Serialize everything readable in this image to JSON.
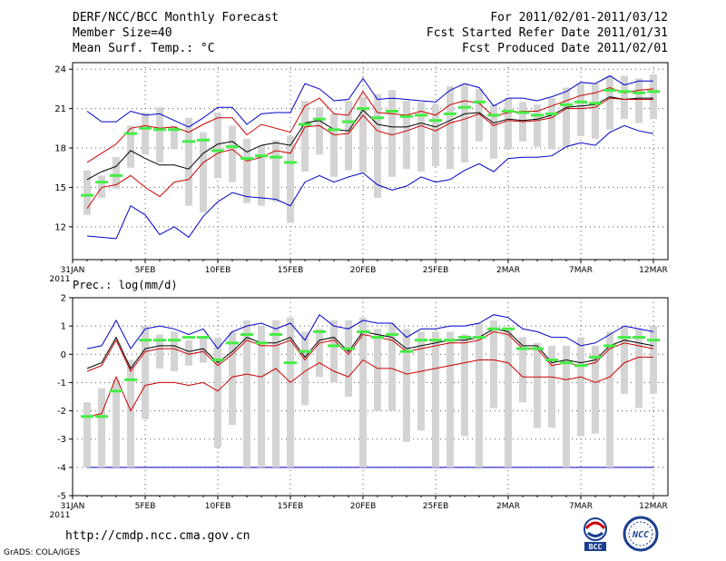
{
  "header": {
    "title": "DERF/NCC/BCC Monthly Forecast",
    "member_size": "Member Size=40",
    "variable": "Mean Surf. Temp.: °C",
    "forecast_period": "For 2011/02/01-2011/03/12",
    "refer_date": "Fcst Started Refer Date 2011/01/31",
    "produced_date": "Fcst Produced Date 2011/02/01"
  },
  "footer": {
    "url": "http://cmdp.ncc.cma.gov.cn",
    "credit": "GrADS: COLA/IGES",
    "logo1_text": "BCC",
    "logo2_text": "NCC"
  },
  "colors": {
    "ensemble_range": "#d4d4d4",
    "member_marker": "#44ee44",
    "spread_outer": "#0000cc",
    "spread_inner": "#cc0000",
    "ensemble_mean": "#000000",
    "grid": "#555555"
  },
  "chart_data": [
    {
      "type": "line",
      "title": "",
      "panel_label": "",
      "xlabel": "",
      "ylabel": "",
      "year_label": "2011",
      "x_tick_labels": [
        "31JAN",
        "5FEB",
        "10FEB",
        "15FEB",
        "20FEB",
        "25FEB",
        "2MAR",
        "7MAR",
        "12MAR"
      ],
      "x_tick_days": [
        0,
        5,
        10,
        15,
        20,
        25,
        30,
        35,
        40
      ],
      "ylim": [
        9.5,
        24.5
      ],
      "yticks": [
        12,
        15,
        18,
        21,
        24
      ],
      "grid": true,
      "x": [
        1,
        2,
        3,
        4,
        5,
        6,
        7,
        8,
        9,
        10,
        11,
        12,
        13,
        14,
        15,
        16,
        17,
        18,
        19,
        20,
        21,
        22,
        23,
        24,
        25,
        26,
        27,
        28,
        29,
        30,
        31,
        32,
        33,
        34,
        35,
        36,
        37,
        38,
        39,
        40
      ],
      "range_bars": {
        "low": [
          12.9,
          14.2,
          14.9,
          16.5,
          17.5,
          16.9,
          17.9,
          13.6,
          13.1,
          15.7,
          15.4,
          13.8,
          13.6,
          13.9,
          12.3,
          16.2,
          17.5,
          15.8,
          16.3,
          16.1,
          14.2,
          15.8,
          16.4,
          16.2,
          16.6,
          16.4,
          16.9,
          18.5,
          17.2,
          17.9,
          18.5,
          18.1,
          17.9,
          18.1,
          18.9,
          18.7,
          19.4,
          20.2,
          19.9,
          20.2
        ],
        "high": [
          16.3,
          15.9,
          17.3,
          19.7,
          20.7,
          21.1,
          19.7,
          20.3,
          19.2,
          20.7,
          19.7,
          18.7,
          18.2,
          18.6,
          18.9,
          21.6,
          21.1,
          20.6,
          21.6,
          21.9,
          22.1,
          22.4,
          21.6,
          21.5,
          21.3,
          22.7,
          22.9,
          22.5,
          21.3,
          21.8,
          21.5,
          21.3,
          21.8,
          22.6,
          22.9,
          22.9,
          23.5,
          23.5,
          23.3,
          23.6
        ]
      },
      "series": [
        {
          "name": "ensemble_max",
          "color": "#0000cc",
          "values": [
            20.8,
            20.0,
            20.0,
            20.8,
            20.5,
            20.6,
            20.1,
            19.6,
            20.3,
            21.1,
            21.1,
            19.8,
            20.6,
            20.7,
            20.7,
            22.9,
            22.5,
            21.6,
            21.7,
            23.3,
            21.7,
            21.8,
            21.7,
            21.6,
            21.5,
            22.4,
            22.9,
            22.6,
            21.2,
            21.8,
            21.8,
            21.6,
            21.9,
            22.3,
            23.0,
            22.9,
            23.5,
            22.8,
            23.1,
            23.1
          ]
        },
        {
          "name": "upper_spread",
          "color": "#cc0000",
          "values": [
            16.9,
            17.6,
            18.3,
            19.5,
            19.7,
            19.5,
            19.6,
            19.2,
            19.8,
            20.3,
            20.3,
            19.0,
            19.8,
            19.5,
            19.2,
            21.2,
            21.8,
            20.6,
            20.5,
            22.3,
            20.7,
            20.6,
            20.5,
            20.8,
            20.5,
            21.3,
            21.6,
            21.4,
            20.4,
            20.7,
            20.8,
            20.8,
            21.2,
            21.6,
            22.0,
            22.2,
            22.6,
            22.2,
            22.4,
            22.5
          ]
        },
        {
          "name": "ensemble_mean",
          "color": "#000000",
          "values": [
            15.6,
            16.2,
            16.6,
            17.8,
            17.2,
            16.7,
            16.7,
            16.4,
            17.6,
            18.3,
            18.5,
            17.7,
            18.2,
            18.4,
            18.2,
            19.9,
            20.1,
            19.4,
            19.3,
            20.9,
            19.8,
            19.6,
            19.6,
            19.9,
            19.6,
            20.1,
            20.6,
            20.7,
            19.9,
            20.2,
            20.1,
            20.2,
            20.5,
            21.1,
            21.2,
            21.3,
            21.9,
            21.7,
            21.8,
            21.8
          ]
        },
        {
          "name": "lower_spread",
          "color": "#cc0000",
          "values": [
            13.4,
            15.0,
            15.2,
            15.9,
            15.0,
            14.3,
            15.4,
            15.6,
            16.9,
            17.6,
            17.9,
            17.0,
            17.3,
            17.8,
            17.6,
            19.6,
            19.7,
            19.0,
            19.1,
            20.5,
            19.3,
            19.0,
            19.3,
            19.7,
            19.3,
            19.9,
            20.2,
            20.6,
            19.7,
            20.1,
            20.0,
            20.1,
            20.3,
            21.0,
            21.0,
            21.1,
            21.8,
            21.7,
            21.7,
            21.7
          ]
        },
        {
          "name": "ensemble_min",
          "color": "#0000cc",
          "values": [
            11.3,
            11.2,
            11.1,
            13.6,
            12.9,
            11.4,
            12.0,
            11.2,
            12.8,
            13.9,
            14.6,
            14.3,
            14.2,
            14.1,
            13.6,
            15.4,
            15.9,
            15.4,
            15.8,
            16.1,
            15.2,
            14.8,
            15.1,
            15.8,
            15.4,
            15.6,
            16.3,
            16.8,
            16.2,
            17.2,
            17.3,
            17.3,
            17.4,
            18.1,
            18.4,
            18.2,
            19.2,
            19.7,
            19.3,
            19.1
          ]
        }
      ],
      "member_markers": [
        14.4,
        15.4,
        15.9,
        19.1,
        19.5,
        19.4,
        19.4,
        18.5,
        18.6,
        17.8,
        18.1,
        17.2,
        17.4,
        17.3,
        16.9,
        19.8,
        20.2,
        19.4,
        20.0,
        21.0,
        20.3,
        20.8,
        20.4,
        20.5,
        20.1,
        20.6,
        21.1,
        21.5,
        20.5,
        20.8,
        20.7,
        20.5,
        20.6,
        21.3,
        21.5,
        21.4,
        22.4,
        22.3,
        22.2,
        22.3
      ]
    },
    {
      "type": "line",
      "title": "",
      "panel_label": "Prec.: log(mm/d)",
      "xlabel": "",
      "ylabel": "",
      "year_label": "2011",
      "x_tick_labels": [
        "31JAN",
        "5FEB",
        "10FEB",
        "15FEB",
        "20FEB",
        "25FEB",
        "2MAR",
        "7MAR",
        "12MAR"
      ],
      "x_tick_days": [
        0,
        5,
        10,
        15,
        20,
        25,
        30,
        35,
        40
      ],
      "ylim": [
        -5,
        2
      ],
      "yticks": [
        -5,
        -4,
        -3,
        -2,
        -1,
        0,
        1,
        2
      ],
      "grid": true,
      "reference_line": {
        "y": -4,
        "color": "#0000cc"
      },
      "x": [
        1,
        2,
        3,
        4,
        5,
        6,
        7,
        8,
        9,
        10,
        11,
        12,
        13,
        14,
        15,
        16,
        17,
        18,
        19,
        20,
        21,
        22,
        23,
        24,
        25,
        26,
        27,
        28,
        29,
        30,
        31,
        32,
        33,
        34,
        35,
        36,
        37,
        38,
        39,
        40
      ],
      "range_bars": {
        "low": [
          -4.0,
          -4.0,
          -4.0,
          -4.0,
          -2.3,
          -0.5,
          -0.6,
          -0.4,
          -0.3,
          -3.3,
          -2.5,
          -4.0,
          -4.0,
          -4.0,
          -4.0,
          -1.8,
          -0.8,
          -1.0,
          -1.5,
          -4.0,
          -2.0,
          -2.0,
          -3.1,
          -2.7,
          -4.0,
          -4.0,
          -2.9,
          -4.0,
          -1.9,
          -4.0,
          -1.7,
          -2.6,
          -2.6,
          -4.0,
          -2.9,
          -2.8,
          -4.0,
          -1.4,
          -1.9,
          -1.4
        ],
        "high": [
          -1.7,
          -1.2,
          -0.9,
          -0.2,
          1.0,
          0.7,
          0.8,
          0.5,
          0.6,
          0.6,
          0.8,
          1.2,
          1.0,
          1.2,
          1.3,
          0.8,
          0.9,
          1.2,
          1.2,
          1.3,
          0.9,
          1.1,
          0.9,
          0.8,
          0.8,
          0.8,
          0.7,
          1.1,
          1.2,
          0.9,
          0.6,
          0.4,
          0.3,
          0.3,
          0.6,
          0.3,
          0.8,
          1.0,
          0.9,
          1.0
        ]
      },
      "series": [
        {
          "name": "ensemble_max",
          "color": "#0000cc",
          "values": [
            0.2,
            0.3,
            1.2,
            0.2,
            0.9,
            1.0,
            0.9,
            0.7,
            0.9,
            0.2,
            0.8,
            1.0,
            1.1,
            0.9,
            1.1,
            0.5,
            1.4,
            1.0,
            0.9,
            1.2,
            1.1,
            1.1,
            0.6,
            0.9,
            0.9,
            1.0,
            1.0,
            1.1,
            1.4,
            1.3,
            0.9,
            0.8,
            0.6,
            0.6,
            0.3,
            0.4,
            0.7,
            1.0,
            0.9,
            0.8
          ]
        },
        {
          "name": "ensemble_mean",
          "color": "#000000",
          "values": [
            -0.5,
            -0.3,
            0.6,
            -0.5,
            0.2,
            0.3,
            0.3,
            0.1,
            0.2,
            -0.3,
            0.1,
            0.6,
            0.4,
            0.4,
            0.6,
            -0.1,
            0.5,
            0.6,
            0.1,
            0.8,
            0.7,
            0.6,
            0.2,
            0.3,
            0.4,
            0.5,
            0.5,
            0.6,
            0.9,
            0.8,
            0.3,
            0.3,
            -0.3,
            -0.2,
            -0.3,
            -0.2,
            0.3,
            0.5,
            0.4,
            0.3
          ]
        },
        {
          "name": "upper_spread",
          "color": "#cc0000",
          "values": [
            -0.6,
            -0.4,
            0.5,
            -0.6,
            0.1,
            0.2,
            0.2,
            0.0,
            0.1,
            -0.4,
            0.0,
            0.5,
            0.3,
            0.3,
            0.5,
            -0.2,
            0.4,
            0.5,
            0.0,
            0.7,
            0.6,
            0.5,
            0.1,
            0.2,
            0.3,
            0.4,
            0.4,
            0.5,
            0.8,
            0.7,
            0.2,
            0.2,
            -0.4,
            -0.3,
            -0.4,
            -0.3,
            0.2,
            0.4,
            0.3,
            0.2
          ]
        },
        {
          "name": "lower_spread",
          "color": "#cc0000",
          "values": [
            -2.2,
            -2.1,
            -0.8,
            -2.0,
            -1.1,
            -1.0,
            -1.0,
            -1.1,
            -1.0,
            -1.3,
            -0.8,
            -0.7,
            -0.8,
            -0.5,
            -1.0,
            -0.6,
            -0.3,
            -0.6,
            -0.8,
            -0.2,
            -0.5,
            -0.5,
            -0.7,
            -0.6,
            -0.5,
            -0.4,
            -0.3,
            -0.2,
            -0.2,
            -0.3,
            -0.8,
            -0.8,
            -0.8,
            -0.9,
            -0.8,
            -1.0,
            -0.8,
            -0.3,
            -0.1,
            -0.1
          ]
        }
      ],
      "member_markers": [
        -2.2,
        -2.2,
        -1.3,
        -0.9,
        0.5,
        0.5,
        0.5,
        0.6,
        0.6,
        -0.2,
        0.4,
        0.7,
        0.4,
        0.7,
        -0.3,
        0.1,
        0.8,
        0.3,
        0.2,
        0.8,
        0.6,
        0.7,
        0.1,
        0.5,
        0.5,
        0.5,
        0.6,
        0.6,
        0.9,
        0.9,
        0.2,
        0.2,
        -0.2,
        -0.3,
        -0.4,
        -0.1,
        0.3,
        0.6,
        0.6,
        0.5
      ]
    }
  ]
}
